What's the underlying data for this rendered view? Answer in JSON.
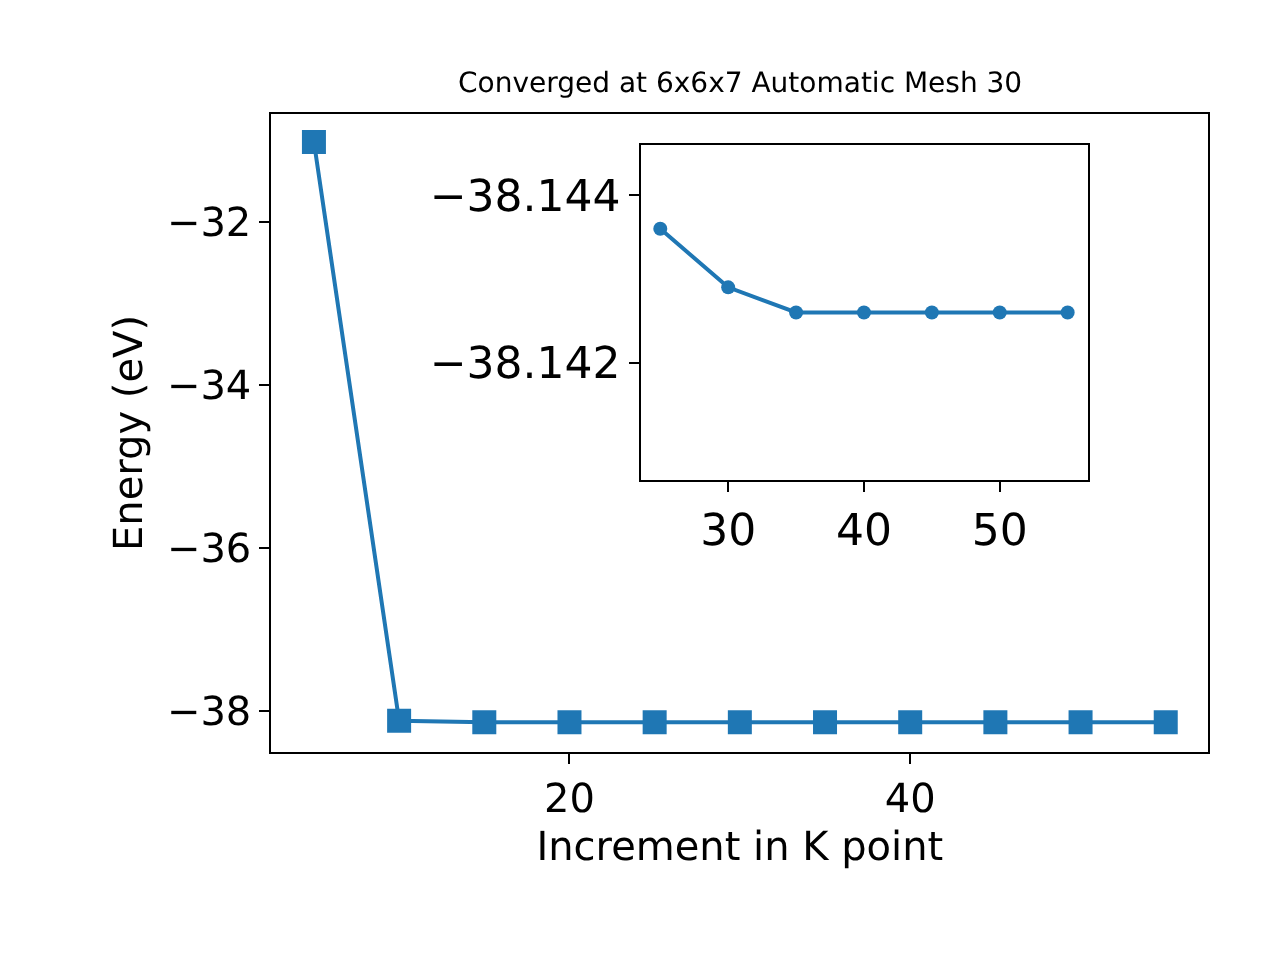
{
  "chart_data": [
    {
      "type": "line",
      "title": "Converged at 6x6x7 Automatic Mesh 30",
      "xlabel": "Increment in K point",
      "ylabel": "Energy (eV)",
      "x": [
        5,
        10,
        15,
        20,
        25,
        30,
        35,
        40,
        45,
        50,
        55
      ],
      "series": [
        {
          "color": "#1f77b4",
          "values": [
            -31.02,
            -38.12,
            -38.14,
            -38.14,
            -38.14,
            -38.14,
            -38.14,
            -38.14,
            -38.14,
            -38.14,
            -38.14
          ]
        }
      ],
      "xlim": [
        2.5,
        57.5
      ],
      "ylim": [
        -38.5,
        -30.68
      ],
      "xticks": [
        20,
        40
      ],
      "yticks": [
        -38,
        -36,
        -34,
        -32
      ],
      "marker": "square"
    },
    {
      "type": "line",
      "x": [
        25,
        30,
        35,
        40,
        45,
        50,
        55
      ],
      "series": [
        {
          "color": "#1f77b4",
          "values": [
            -38.1436,
            -38.1429,
            -38.1426,
            -38.1426,
            -38.1426,
            -38.1426,
            -38.1426
          ]
        }
      ],
      "xlim": [
        23.6,
        56.5
      ],
      "ylim": [
        -38.1406,
        -38.1446
      ],
      "xticks": [
        30,
        40,
        50
      ],
      "yticks": [
        {
          "value": -38.144,
          "label": "−38.144"
        },
        {
          "value": -38.142,
          "label": "−38.142"
        }
      ],
      "marker": "circle"
    }
  ]
}
